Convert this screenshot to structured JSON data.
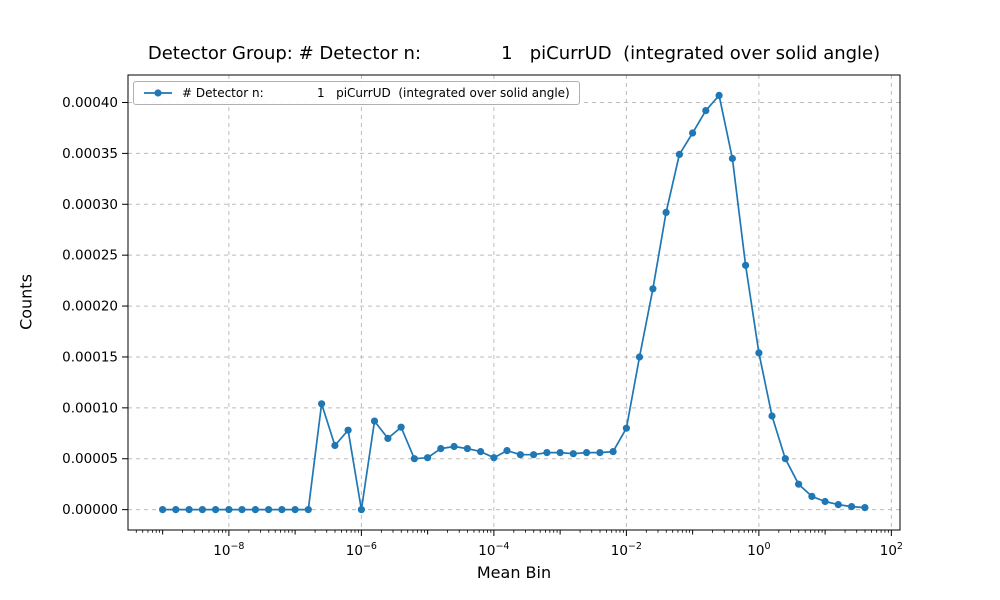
{
  "chart_data": {
    "type": "line",
    "x_scale": "log",
    "title": "Detector Group: # Detector n:              1   piCurrUD  (integrated over solid angle)",
    "xlabel": "Mean Bin",
    "ylabel": "Counts",
    "legend": [
      "# Detector n:              1   piCurrUD  (integrated over solid angle)"
    ],
    "legend_position": "upper left",
    "grid": true,
    "marker": "o",
    "line_color": "#1f77b4",
    "grid_color": "#b5b5b5",
    "axis_color": "#000000",
    "xlim": [
      3e-10,
      135.0
    ],
    "ylim": [
      -2e-05,
      0.000427
    ],
    "x_ticks": [
      {
        "value": 1e-08,
        "base": "10",
        "exponent": "−8"
      },
      {
        "value": 1e-06,
        "base": "10",
        "exponent": "−6"
      },
      {
        "value": 0.0001,
        "base": "10",
        "exponent": "−4"
      },
      {
        "value": 0.01,
        "base": "10",
        "exponent": "−2"
      },
      {
        "value": 1.0,
        "base": "10",
        "exponent": "0"
      },
      {
        "value": 100.0,
        "base": "10",
        "exponent": "2"
      }
    ],
    "y_ticks": [
      {
        "value": 0.0,
        "label": "0.00000"
      },
      {
        "value": 5e-05,
        "label": "0.00005"
      },
      {
        "value": 0.0001,
        "label": "0.00010"
      },
      {
        "value": 0.00015,
        "label": "0.00015"
      },
      {
        "value": 0.0002,
        "label": "0.00020"
      },
      {
        "value": 0.00025,
        "label": "0.00025"
      },
      {
        "value": 0.0003,
        "label": "0.00030"
      },
      {
        "value": 0.00035,
        "label": "0.00035"
      },
      {
        "value": 0.0004,
        "label": "0.00040"
      }
    ],
    "x": [
      1e-09,
      1.58e-09,
      2.51e-09,
      3.98e-09,
      6.31e-09,
      1e-08,
      1.58e-08,
      2.51e-08,
      3.98e-08,
      6.31e-08,
      1e-07,
      1.58e-07,
      2.51e-07,
      3.98e-07,
      6.31e-07,
      1e-06,
      1.58e-06,
      2.51e-06,
      3.98e-06,
      6.31e-06,
      1e-05,
      1.58e-05,
      2.51e-05,
      3.98e-05,
      6.31e-05,
      0.0001,
      0.000158,
      0.000251,
      0.000398,
      0.000631,
      0.001,
      0.00158,
      0.00251,
      0.00398,
      0.00631,
      0.01,
      0.0158,
      0.0251,
      0.0398,
      0.0631,
      0.1,
      0.158,
      0.251,
      0.398,
      0.631,
      1.0,
      1.58,
      2.51,
      3.98,
      6.31,
      10.0,
      15.8,
      25.1,
      39.8
    ],
    "y": [
      0,
      0,
      0,
      0,
      0,
      0,
      0,
      0,
      0,
      0,
      0,
      0,
      0.000104,
      6.3e-05,
      7.8e-05,
      0.0,
      8.7e-05,
      7e-05,
      8.1e-05,
      5e-05,
      5.1e-05,
      6e-05,
      6.2e-05,
      6e-05,
      5.7e-05,
      5.1e-05,
      5.8e-05,
      5.4e-05,
      5.4e-05,
      5.6e-05,
      5.6e-05,
      5.5e-05,
      5.6e-05,
      5.6e-05,
      5.7e-05,
      8e-05,
      0.00015,
      0.000217,
      0.000292,
      0.000349,
      0.00037,
      0.000392,
      0.000407,
      0.000345,
      0.00024,
      0.000154,
      9.2e-05,
      5e-05,
      2.5e-05,
      1.3e-05,
      8e-06,
      5e-06,
      3e-06,
      2e-06
    ]
  }
}
